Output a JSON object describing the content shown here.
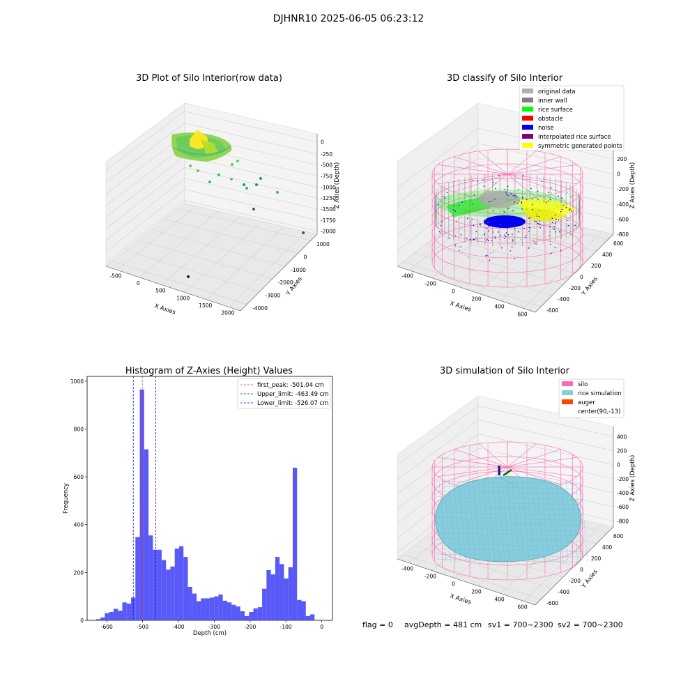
{
  "figure": {
    "title": "DJHNR10 2025-06-05 06:23:12",
    "footer": {
      "flag": "flag = 0",
      "avg_depth": "avgDepth = 481 cm",
      "sv1": "sv1 = 700~2300",
      "sv2": "sv2 = 700~2300"
    }
  },
  "colors": {
    "histogram_bar": "#5050f8",
    "first_peak_line": "#e03030",
    "limit_line": "#1010d0",
    "silo": "#ff69b4",
    "rice_simulation": "#87cdde",
    "auger": "#ff4400",
    "original_data": "#b0b0b0",
    "inner_wall": "#808080",
    "rice_surface": "#00ff00",
    "obstacle": "#ff0000",
    "noise": "#0000ff",
    "interpolated_rice_surface": "#800080",
    "symmetric_generated_points": "#ffff00"
  },
  "chart_data": [
    {
      "type": "scatter3d",
      "title": "3D Plot of Silo Interior(row data)",
      "xlabel": "X Axies",
      "ylabel": "Y Axies",
      "zlabel": "Z Axies (Depth)",
      "x_ticks": [
        "-500",
        "0",
        "500",
        "1000",
        "1500",
        "2000"
      ],
      "y_ticks": [
        "-4000",
        "-3000",
        "-2000",
        "-1000",
        "0",
        "1000"
      ],
      "z_ticks": [
        "0",
        "-250",
        "-500",
        "-750",
        "-1000",
        "-1250",
        "-1500",
        "-1750",
        "-2000"
      ],
      "xlim": [
        -600,
        2100
      ],
      "ylim": [
        -4200,
        1400
      ],
      "zlim": [
        -2050,
        100
      ]
    },
    {
      "type": "scatter3d",
      "title": "3D classify of Silo Interior",
      "xlabel": "X Axies",
      "ylabel": "Y Axies",
      "zlabel": "Z Axies (Depth)",
      "x_ticks": [
        "-400",
        "-200",
        "0",
        "200",
        "400",
        "600"
      ],
      "y_ticks": [
        "-600",
        "-400",
        "-200",
        "0",
        "200",
        "400",
        "600"
      ],
      "z_ticks": [
        "200",
        "0",
        "-200",
        "-400",
        "-600",
        "-800"
      ],
      "legend_position": "top-right",
      "legend": [
        {
          "label": "original data",
          "color": "#b0b0b0"
        },
        {
          "label": "inner wall",
          "color": "#808080"
        },
        {
          "label": "rice surface",
          "color": "#00ff00"
        },
        {
          "label": "obstacle",
          "color": "#ff0000"
        },
        {
          "label": "noise",
          "color": "#0000ff"
        },
        {
          "label": "interpolated rice surface",
          "color": "#800080"
        },
        {
          "label": "symmetric generated points",
          "color": "#ffff00"
        }
      ]
    },
    {
      "type": "bar",
      "title": "Histogram of Z-Axies (Height) Values",
      "xlabel": "Depth (cm)",
      "ylabel": "Frequency",
      "xlim": [
        -655,
        30
      ],
      "ylim": [
        0,
        1020
      ],
      "x_ticks": [
        -600,
        -500,
        -400,
        -300,
        -200,
        -100,
        0
      ],
      "y_ticks": [
        0,
        200,
        400,
        600,
        800,
        1000
      ],
      "bin_width": 12.2,
      "bin_start": -630,
      "values": [
        5,
        12,
        30,
        35,
        48,
        40,
        75,
        70,
        95,
        348,
        965,
        715,
        355,
        295,
        295,
        252,
        212,
        225,
        300,
        310,
        265,
        140,
        112,
        80,
        92,
        92,
        95,
        100,
        108,
        82,
        75,
        65,
        58,
        38,
        18,
        35,
        50,
        55,
        132,
        210,
        192,
        265,
        235,
        175,
        222,
        638,
        85,
        80,
        18,
        25
      ],
      "reference_lines": [
        {
          "label": "first_peak: -501.04 cm",
          "x": -501.04,
          "style": "red-dashed"
        },
        {
          "label": "Upper_limit: -463.49 cm",
          "x": -463.49,
          "style": "blue-dashed"
        },
        {
          "label": "Lower_limit: -526.07 cm",
          "x": -526.07,
          "style": "blue-dashed"
        }
      ],
      "legend_position": "top-right"
    },
    {
      "type": "surface3d",
      "title": "3D simulation of Silo Interior",
      "xlabel": "X Axies",
      "ylabel": "Y Axies",
      "zlabel": "Z Axies (Depth)",
      "x_ticks": [
        "-400",
        "-200",
        "0",
        "200",
        "400",
        "600"
      ],
      "y_ticks": [
        "-600",
        "-400",
        "-200",
        "0",
        "200",
        "400",
        "600"
      ],
      "z_ticks": [
        "400",
        "200",
        "0",
        "-200",
        "-400",
        "-600",
        "-800"
      ],
      "legend_position": "top-right",
      "legend": [
        {
          "label": "silo",
          "color": "#ff69b4"
        },
        {
          "label": "rice simulation",
          "color": "#87cdde"
        },
        {
          "label": "auger",
          "color": "#ff4400"
        },
        {
          "label": "center(90,-13)",
          "color": ""
        }
      ]
    }
  ]
}
